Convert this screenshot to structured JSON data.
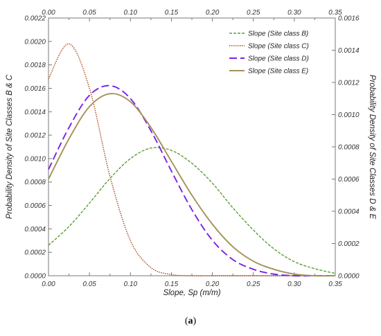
{
  "caption": {
    "open": "(",
    "letter": "a",
    "close": ")"
  },
  "chart_data": {
    "type": "line",
    "xlabel": "Slope, Sp (m/m)",
    "ylabel_left": "Probability Density of Site Classes B & C",
    "ylabel_right": "Probability Density of Site Classes D & E",
    "xlim": [
      0,
      0.35
    ],
    "ylim_left": [
      0,
      0.0022
    ],
    "ylim_right": [
      0,
      0.0016
    ],
    "x_ticks": [
      "0.00",
      "0.05",
      "0.10",
      "0.15",
      "0.20",
      "0.25",
      "0.30",
      "0.35"
    ],
    "y_left_ticks": [
      "0.0000",
      "0.0002",
      "0.0004",
      "0.0006",
      "0.0008",
      "0.0010",
      "0.0012",
      "0.0014",
      "0.0016",
      "0.0018",
      "0.0020",
      "0.0022"
    ],
    "y_right_ticks": [
      "0.0000",
      "0.0002",
      "0.0004",
      "0.0006",
      "0.0008",
      "0.0010",
      "0.0012",
      "0.0014",
      "0.0016"
    ],
    "grid": false,
    "legend_position": "top-right",
    "x": [
      0,
      0.025,
      0.05,
      0.075,
      0.1,
      0.125,
      0.15,
      0.175,
      0.2,
      0.225,
      0.25,
      0.275,
      0.3,
      0.325,
      0.35
    ],
    "series": [
      {
        "name": "Slope (Site class B)",
        "axis": "left",
        "color": "#5a9e2f",
        "dash": "4,2",
        "values": [
          0.00026,
          0.00042,
          0.00062,
          0.00083,
          0.001,
          0.00109,
          0.00107,
          0.00096,
          0.00079,
          0.00058,
          0.00039,
          0.00023,
          0.00012,
          6e-05,
          2e-05
        ]
      },
      {
        "name": "Slope (Site class C)",
        "axis": "left",
        "color": "#b0441a",
        "dash": "1.5,1.5",
        "values": [
          0.00168,
          0.00198,
          0.0016,
          0.00085,
          0.0003,
          7e-05,
          1e-05,
          0.0,
          0.0,
          0.0,
          0.0,
          0.0,
          0.0,
          0.0,
          0.0
        ]
      },
      {
        "name": "Slope (Site class D)",
        "axis": "right",
        "color": "#7b1fe8",
        "dash": "11,5",
        "values": [
          0.00066,
          0.00092,
          0.00112,
          0.00118,
          0.0011,
          0.0009,
          0.00065,
          0.00041,
          0.00022,
          0.0001,
          4e-05,
          1e-05,
          0.0,
          0.0,
          0.0
        ]
      },
      {
        "name": "Slope (Site class E)",
        "axis": "right",
        "color": "#a39158",
        "dash": "",
        "values": [
          0.0006,
          0.00085,
          0.00105,
          0.00113,
          0.00108,
          0.00092,
          0.00071,
          0.0005,
          0.00032,
          0.00018,
          9e-05,
          4e-05,
          1e-05,
          0.0,
          0.0
        ]
      }
    ]
  }
}
